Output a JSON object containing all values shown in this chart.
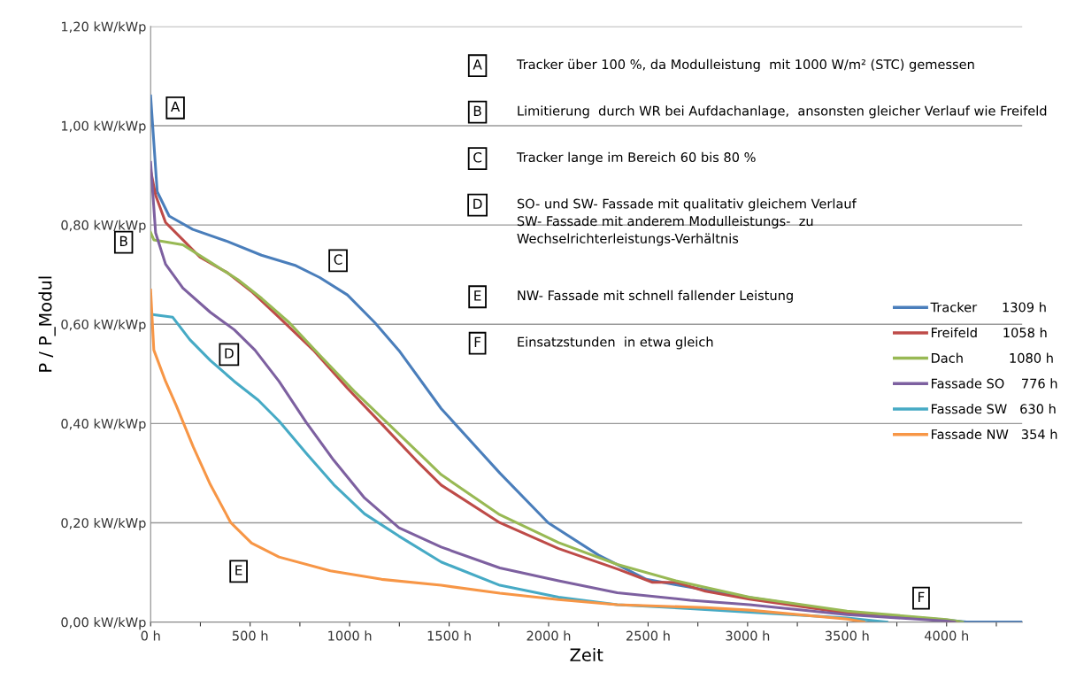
{
  "chart_data": {
    "type": "line",
    "xlabel": "Zeit",
    "ylabel": "P / P_Modul",
    "xlim": [
      0,
      4380
    ],
    "ylim": [
      0,
      1.2
    ],
    "xticks": [
      {
        "value": 0,
        "label": "0 h"
      },
      {
        "value": 250,
        "label": null
      },
      {
        "value": 500,
        "label": "500 h"
      },
      {
        "value": 750,
        "label": null
      },
      {
        "value": 1000,
        "label": "1000 h"
      },
      {
        "value": 1250,
        "label": null
      },
      {
        "value": 1500,
        "label": "1500 h"
      },
      {
        "value": 1750,
        "label": null
      },
      {
        "value": 2000,
        "label": "2000 h"
      },
      {
        "value": 2250,
        "label": null
      },
      {
        "value": 2500,
        "label": "2500 h"
      },
      {
        "value": 2750,
        "label": null
      },
      {
        "value": 3000,
        "label": "3000 h"
      },
      {
        "value": 3250,
        "label": null
      },
      {
        "value": 3500,
        "label": "3500 h"
      },
      {
        "value": 3750,
        "label": null
      },
      {
        "value": 4000,
        "label": "4000 h"
      },
      {
        "value": 4250,
        "label": null
      }
    ],
    "yticks": [
      {
        "value": 0,
        "label": "0,00 kW/kWp"
      },
      {
        "value": 0.2,
        "label": "0,20 kW/kWp"
      },
      {
        "value": 0.4,
        "label": "0,40 kW/kWp"
      },
      {
        "value": 0.6,
        "label": "0,60 kW/kWp"
      },
      {
        "value": 0.8,
        "label": "0,80 kW/kWp"
      },
      {
        "value": 1.0,
        "label": "1,00 kW/kWp"
      },
      {
        "value": 1.2,
        "label": "1,20 kW/kWp"
      }
    ],
    "grid": "y",
    "legend": "right",
    "marker": "none",
    "line_style": "solid",
    "series": [
      {
        "name": "Tracker      1309 h",
        "color": "#4a7ebb",
        "x": [
          0,
          33,
          93,
          212,
          385,
          557,
          730,
          850,
          989,
          1127,
          1248,
          1460,
          1755,
          1998,
          2250,
          2491,
          2640,
          3000,
          3500,
          4000,
          4100,
          4380
        ],
        "values": [
          1.06,
          0.867,
          0.818,
          0.791,
          0.767,
          0.739,
          0.718,
          0.694,
          0.659,
          0.603,
          0.547,
          0.43,
          0.3,
          0.2,
          0.135,
          0.086,
          0.075,
          0.05,
          0.02,
          0.004,
          0,
          0
        ]
      },
      {
        "name": "Freifeld      1058 h",
        "color": "#be4b48",
        "x": [
          0,
          25,
          75,
          162,
          248,
          385,
          507,
          645,
          817,
          989,
          1161,
          1334,
          1460,
          1755,
          2050,
          2345,
          2522,
          2640,
          2788,
          3009,
          3500,
          4000,
          4060
        ],
        "values": [
          0.91,
          0.86,
          0.805,
          0.77,
          0.735,
          0.704,
          0.666,
          0.614,
          0.548,
          0.471,
          0.399,
          0.326,
          0.276,
          0.2,
          0.148,
          0.107,
          0.08,
          0.08,
          0.062,
          0.046,
          0.018,
          0.003,
          0
        ]
      },
      {
        "name": "Dach           1080 h",
        "color": "#98b954",
        "x": [
          0,
          16,
          162,
          300,
          438,
          558,
          697,
          851,
          1023,
          1195,
          1367,
          1460,
          1755,
          2050,
          2345,
          2640,
          3009,
          3500,
          4000,
          4080
        ],
        "values": [
          0.785,
          0.77,
          0.76,
          0.725,
          0.69,
          0.652,
          0.603,
          0.537,
          0.465,
          0.399,
          0.333,
          0.297,
          0.216,
          0.16,
          0.116,
          0.083,
          0.05,
          0.022,
          0.005,
          0
        ]
      },
      {
        "name": "Fassade SO    776 h",
        "color": "#7d60a0",
        "x": [
          0,
          25,
          75,
          162,
          300,
          420,
          524,
          645,
          782,
          920,
          1075,
          1248,
          1460,
          1755,
          2050,
          2345,
          2712,
          3009,
          3500,
          4000,
          4040
        ],
        "values": [
          0.926,
          0.784,
          0.721,
          0.673,
          0.624,
          0.589,
          0.548,
          0.485,
          0.402,
          0.326,
          0.25,
          0.19,
          0.151,
          0.109,
          0.083,
          0.059,
          0.044,
          0.035,
          0.015,
          0.002,
          0
        ]
      },
      {
        "name": "Fassade SW   630 h",
        "color": "#46aac5",
        "x": [
          0,
          111,
          197,
          300,
          420,
          541,
          645,
          782,
          920,
          1075,
          1248,
          1460,
          1755,
          2050,
          2345,
          2712,
          3009,
          3500,
          3700
        ],
        "values": [
          0.62,
          0.614,
          0.569,
          0.527,
          0.485,
          0.447,
          0.405,
          0.34,
          0.277,
          0.218,
          0.173,
          0.121,
          0.074,
          0.05,
          0.035,
          0.027,
          0.02,
          0.008,
          0
        ]
      },
      {
        "name": "Fassade NW   354 h",
        "color": "#f79646",
        "x": [
          0,
          16,
          75,
          128,
          214,
          300,
          403,
          507,
          645,
          903,
          1161,
          1460,
          1755,
          2050,
          2345,
          2788,
          3009,
          3500,
          3584
        ],
        "values": [
          0.669,
          0.548,
          0.485,
          0.437,
          0.353,
          0.277,
          0.2,
          0.159,
          0.131,
          0.103,
          0.086,
          0.074,
          0.058,
          0.045,
          0.035,
          0.029,
          0.024,
          0.006,
          0
        ]
      }
    ],
    "annotations": [
      {
        "text": "A",
        "x": 124,
        "y": 1.036
      },
      {
        "text": "B",
        "x": 0,
        "y": 0.77
      },
      {
        "text": "C",
        "x": 942,
        "y": 0.728
      },
      {
        "text": "D",
        "x": 394,
        "y": 0.539
      },
      {
        "text": "E",
        "x": 442,
        "y": 0.102
      },
      {
        "text": "F",
        "x": 3872,
        "y": 0.048
      },
      "Tracker über 100 %, da Modulleistung  mit 1000 W/m² (STC) gemessen",
      "Limitierung  durch WR bei Aufdachanlage,  ansonsten gleicher Verlauf wie Freifeld",
      "Tracker lange im Bereich 60 bis 80 %",
      "SO- und SW- Fassade mit qualitativ gleichem Verlauf\nSW- Fassade mit anderem Modulleistungs-  zu\nWechselrichterleistungs-Verhältnis",
      "NW- Fassade mit schnell fallender Leistung",
      "Einsatzstunden  in etwa gleich"
    ]
  }
}
